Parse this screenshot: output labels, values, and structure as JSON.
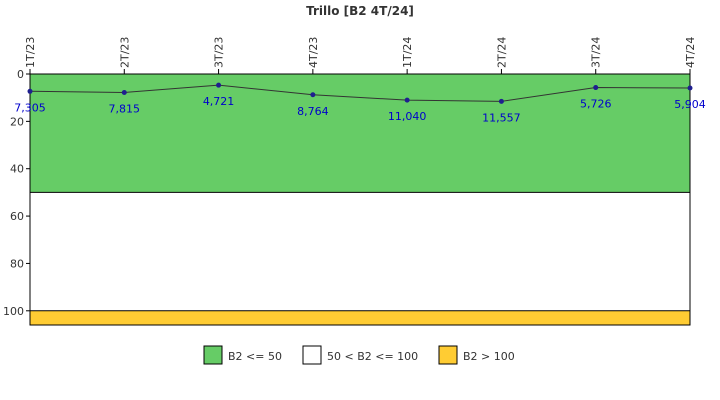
{
  "chart_data": {
    "type": "line",
    "title": "Trillo [B2 4T/24]",
    "categories": [
      "1T/23",
      "2T/23",
      "3T/23",
      "4T/23",
      "1T/24",
      "2T/24",
      "3T/24",
      "4T/24"
    ],
    "series": [
      {
        "values": [
          7.305,
          7.815,
          4.721,
          8.764,
          11.04,
          11.557,
          5.726,
          5.904
        ],
        "labels": [
          "7,305",
          "7,815",
          "4,721",
          "8,764",
          "11,040",
          "11,557",
          "5,726",
          "5,904"
        ],
        "color": "#1f1f8f"
      }
    ],
    "yticks": [
      "0",
      "20",
      "40",
      "60",
      "80",
      "100"
    ],
    "yaxis": {
      "min": 0,
      "max": 106,
      "inverted": true
    },
    "bands": [
      {
        "from": 0,
        "to": 50,
        "color": "#66cc66"
      },
      {
        "from": 50,
        "to": 100,
        "color": "#ffffff"
      },
      {
        "from": 100,
        "to": 106,
        "color": "#ffcc33"
      }
    ],
    "legend": {
      "placement": "bottom",
      "items": [
        {
          "label": "B2 <= 50",
          "color": "#66cc66"
        },
        {
          "label": "50 < B2 <= 100",
          "color": "#ffffff"
        },
        {
          "label": "B2 > 100",
          "color": "#ffcc33"
        }
      ]
    },
    "label_color": "#0000cc",
    "line_color": "#333333",
    "grid": false
  }
}
